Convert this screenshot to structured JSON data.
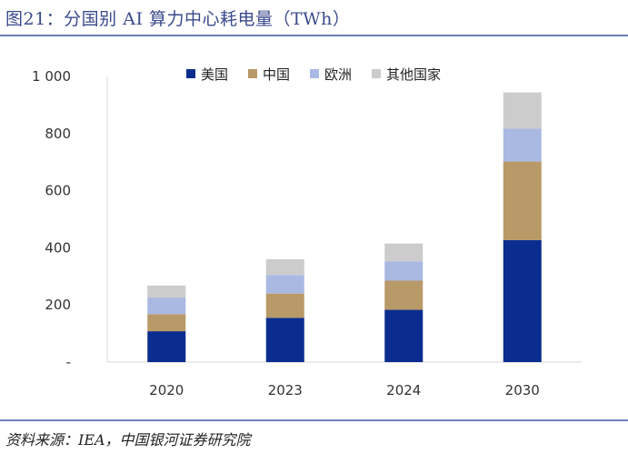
{
  "figure": {
    "title": "图21：分国别 AI 算力中心耗电量（TWh）",
    "source": "资料来源：IEA，中国银河证券研究院"
  },
  "chart_data": {
    "type": "bar",
    "stacked": true,
    "title": "分国别 AI 算力中心耗电量（TWh）",
    "categories": [
      "2020",
      "2023",
      "2024",
      "2030"
    ],
    "series": [
      {
        "name": "美国",
        "color": "#0a2d8f",
        "values": [
          108,
          155,
          183,
          427
        ]
      },
      {
        "name": "中国",
        "color": "#b89968",
        "values": [
          60,
          85,
          102,
          275
        ]
      },
      {
        "name": "欧洲",
        "color": "#a9b9e2",
        "values": [
          58,
          65,
          68,
          115
        ]
      },
      {
        "name": "其他国家",
        "color": "#cccccc",
        "values": [
          42,
          55,
          62,
          127
        ]
      }
    ],
    "ylim": [
      0,
      1000
    ],
    "yticks": [
      0,
      200,
      400,
      600,
      800,
      1000
    ],
    "ytick_labels": [
      "-",
      "200",
      "400",
      "600",
      "800",
      "1 000"
    ],
    "xlabel": "",
    "ylabel": "",
    "legend_position": "top-center"
  }
}
